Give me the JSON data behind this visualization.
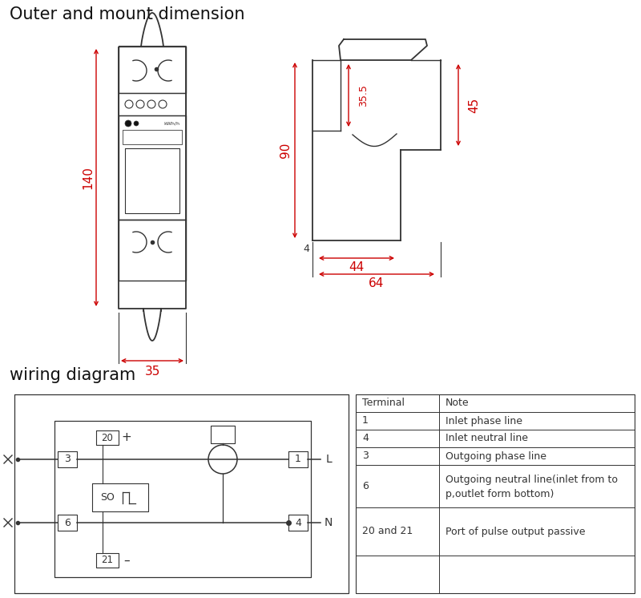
{
  "title_top": "Outer and mount dimension",
  "title_bottom": "wiring diagram",
  "dim_color": "#cc0000",
  "line_color": "#333333",
  "bg_color": "#ffffff",
  "title_fontsize": 15,
  "label_fontsize": 9,
  "dim_label_fontsize": 11,
  "table_headers": [
    "Terminal",
    "Note"
  ],
  "table_rows": [
    [
      "1",
      "Inlet phase line"
    ],
    [
      "4",
      "Inlet neutral line"
    ],
    [
      "3",
      "Outgoing phase line"
    ],
    [
      "6",
      "Outgoing neutral line(inlet from to\np,outlet form bottom)"
    ],
    [
      "20 and 21",
      "Port of pulse output passive"
    ]
  ]
}
